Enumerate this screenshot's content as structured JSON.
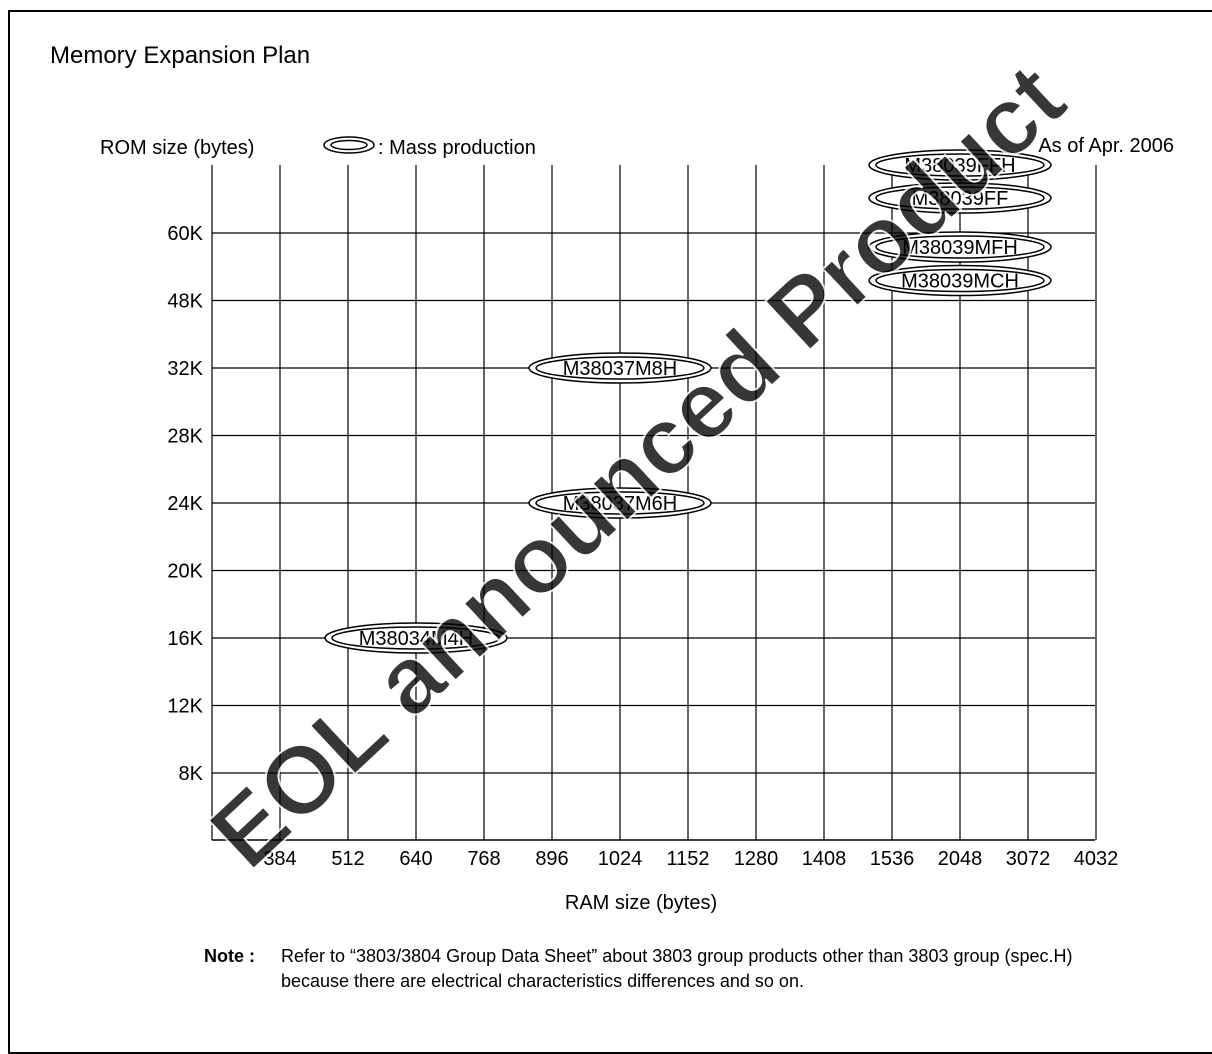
{
  "page": {
    "title": "Memory Expansion Plan",
    "as_of": "As of Apr. 2006"
  },
  "legend": {
    "text": ": Mass production"
  },
  "chart_data": {
    "type": "scatter",
    "xlabel": "RAM size (bytes)",
    "ylabel": "ROM size (bytes)",
    "x_categories": [
      "384",
      "512",
      "640",
      "768",
      "896",
      "1024",
      "1152",
      "1280",
      "1408",
      "1536",
      "2048",
      "3072",
      "4032"
    ],
    "y_categories": [
      "8K",
      "12K",
      "16K",
      "20K",
      "24K",
      "28K",
      "32K",
      "48K",
      "60K"
    ],
    "grid": true,
    "legend_placement": "top",
    "points": [
      {
        "label": "M38034M4H",
        "x": "640",
        "y": "16K",
        "status": "Mass production"
      },
      {
        "label": "M38037M6H",
        "x": "1024",
        "y": "24K",
        "status": "Mass production"
      },
      {
        "label": "M38037M8H",
        "x": "1024",
        "y": "32K",
        "status": "Mass production"
      },
      {
        "label": "M38039MCH",
        "x": "2048",
        "y": "48K",
        "status": "Mass production"
      },
      {
        "label": "M38039MFH",
        "x": "2048",
        "y": "60K",
        "status": "Mass production"
      },
      {
        "label": "M38039FF",
        "x": "2048",
        "y": "60K",
        "status": "Mass production"
      },
      {
        "label": "M38039FFH",
        "x": "2048",
        "y": "60K",
        "status": "Mass production"
      }
    ]
  },
  "note": {
    "label": "Note :",
    "text": "Refer to “3803/3804 Group Data Sheet” about 3803 group products other than 3803 group (spec.H) because there are electrical characteristics differences and so on."
  },
  "watermark": {
    "text": "EOL announced Product",
    "color": "#e8212a"
  }
}
